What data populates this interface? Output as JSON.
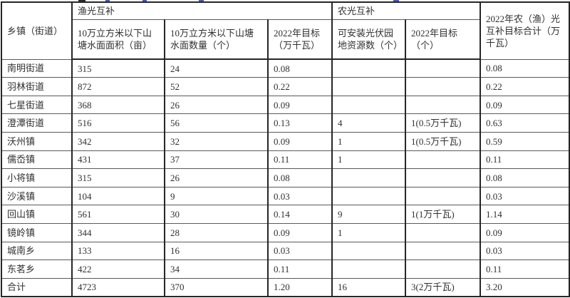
{
  "table": {
    "corner_header": "乡镇（街道）",
    "group_headers": {
      "fishery": "渔光互补",
      "agri": "农光互补"
    },
    "sub_headers": {
      "pond_area": "10万立方米以下山塘水面面积（亩）",
      "pond_count": "10万立方米以下山塘水面数量（个）",
      "fishery_target_2022": "2022年目标（万千瓦）",
      "pv_land_resources": "可安装光伏园地资源数（个）",
      "agri_target_2022": "2022年目标（个）"
    },
    "total_header": "2022年农（渔）光互补目标合计（万千瓦）",
    "rows": [
      {
        "name": "南明街道",
        "values": [
          "315",
          "24",
          "0.08",
          "",
          "",
          "0.08"
        ]
      },
      {
        "name": "羽林街道",
        "values": [
          "872",
          "52",
          "0.22",
          "",
          "",
          "0.22"
        ]
      },
      {
        "name": "七星街道",
        "values": [
          "368",
          "26",
          "0.09",
          "",
          "",
          "0.09"
        ]
      },
      {
        "name": "澄潭街道",
        "values": [
          "516",
          "56",
          "0.13",
          "4",
          "1(0.5万千瓦)",
          "0.63"
        ]
      },
      {
        "name": "沃州镇",
        "values": [
          "342",
          "32",
          "0.09",
          "1",
          "1(0.5万千瓦)",
          "0.59"
        ]
      },
      {
        "name": "儒岙镇",
        "values": [
          "431",
          "37",
          "0.11",
          "1",
          "",
          "0.11"
        ]
      },
      {
        "name": "小将镇",
        "values": [
          "315",
          "26",
          "0.08",
          "",
          "",
          "0.08"
        ]
      },
      {
        "name": "沙溪镇",
        "values": [
          "104",
          "9",
          "0.03",
          "",
          "",
          "0.03"
        ]
      },
      {
        "name": "回山镇",
        "values": [
          "561",
          "30",
          "0.14",
          "9",
          "1(1万千瓦)",
          "1.14"
        ]
      },
      {
        "name": "镜岭镇",
        "values": [
          "344",
          "28",
          "0.09",
          "1",
          "",
          "0.09"
        ]
      },
      {
        "name": "城南乡",
        "values": [
          "133",
          "16",
          "0.03",
          "",
          "",
          "0.03"
        ]
      },
      {
        "name": "东茗乡",
        "values": [
          "422",
          "34",
          "0.11",
          "",
          "",
          "0.11"
        ]
      },
      {
        "name": "合计",
        "values": [
          "4723",
          "370",
          "1.20",
          "16",
          "3(2万千瓦)",
          "3.20"
        ]
      }
    ]
  },
  "colors": {
    "border_dark": "#262626",
    "border_light": "#5a5a5a",
    "text": "#303030",
    "remnant_blue": "#4a5aa8",
    "remnant_dark": "#2a2a2a"
  }
}
